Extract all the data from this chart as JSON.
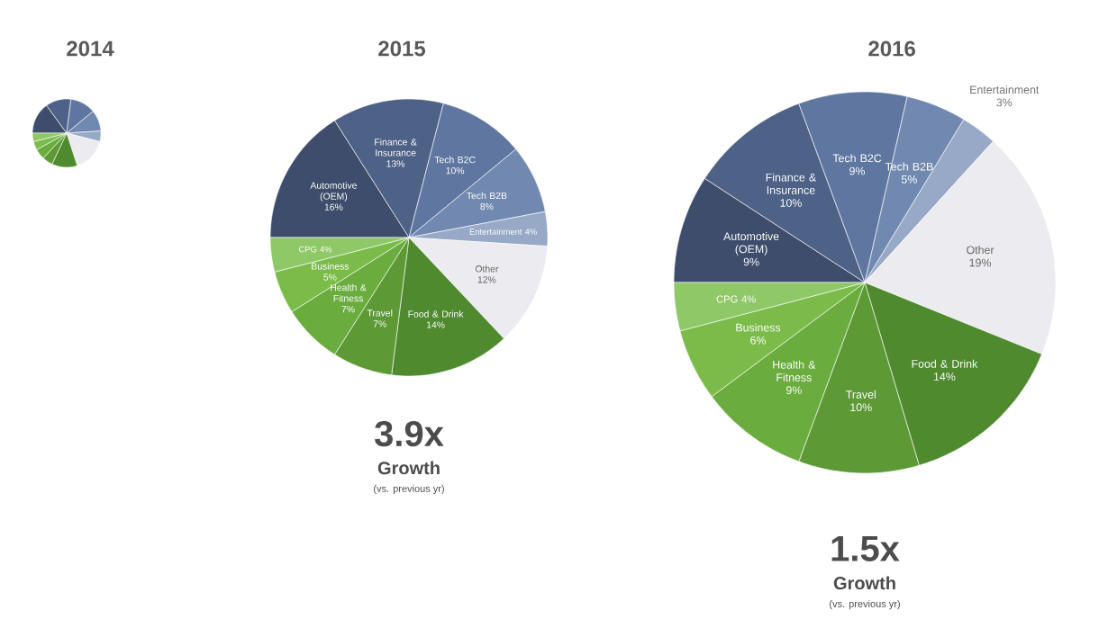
{
  "chart_data": [
    {
      "type": "pie",
      "title": "2014",
      "categories": [
        null,
        null,
        null,
        null,
        null,
        null,
        null,
        null,
        null,
        null,
        null
      ],
      "values": [
        15,
        12,
        12,
        10,
        5,
        16,
        12,
        5,
        5,
        4,
        4
      ],
      "colors": [
        "#3d4d6b",
        "#4e6186",
        "#5f77a0",
        "#7189b0",
        "#97a9c6",
        "#ececf0",
        "#4f8a2f",
        "#5d9a36",
        "#6aac3e",
        "#7bbb4a",
        "#8fc867"
      ]
    },
    {
      "type": "pie",
      "title": "2015",
      "categories": [
        "Automotive (OEM)",
        "Finance & Insurance",
        "Tech B2C",
        "Tech B2B",
        "Entertainment",
        "Other",
        "Food & Drink",
        "Travel",
        "Health & Fitness",
        "Business",
        "CPG"
      ],
      "values": [
        16,
        13,
        10,
        8,
        4,
        12,
        14,
        7,
        7,
        5,
        4
      ],
      "value_labels": [
        "16%",
        "13%",
        "10%",
        "8%",
        "4%",
        "12%",
        "14%",
        "7%",
        "7%",
        "5%",
        "4%"
      ],
      "colors": [
        "#3d4d6b",
        "#4e6186",
        "#5f77a0",
        "#7189b0",
        "#97a9c6",
        "#ececf0",
        "#4f8a2f",
        "#5d9a36",
        "#6aac3e",
        "#7bbb4a",
        "#8fc867"
      ],
      "annotations": [
        "3.9x",
        "Growth",
        "(vs. previous yr)"
      ]
    },
    {
      "type": "pie",
      "title": "2016",
      "categories": [
        "Automotive (OEM)",
        "Finance & Insurance",
        "Tech B2C",
        "Tech B2B",
        "Entertainment",
        "Other",
        "Food & Drink",
        "Travel",
        "Health & Fitness",
        "Business",
        "CPG"
      ],
      "values": [
        9,
        10,
        9,
        5,
        3,
        19,
        14,
        10,
        9,
        6,
        4
      ],
      "value_labels": [
        "9%",
        "10%",
        "9%",
        "5%",
        "3%",
        "19%",
        "14%",
        "10%",
        "9%",
        "6%",
        "4%"
      ],
      "colors": [
        "#3d4d6b",
        "#4e6186",
        "#5f77a0",
        "#7189b0",
        "#97a9c6",
        "#ececf0",
        "#4f8a2f",
        "#5d9a36",
        "#6aac3e",
        "#7bbb4a",
        "#8fc867"
      ],
      "annotations": [
        "1.5x",
        "Growth",
        "(vs. previous yr)"
      ]
    }
  ]
}
